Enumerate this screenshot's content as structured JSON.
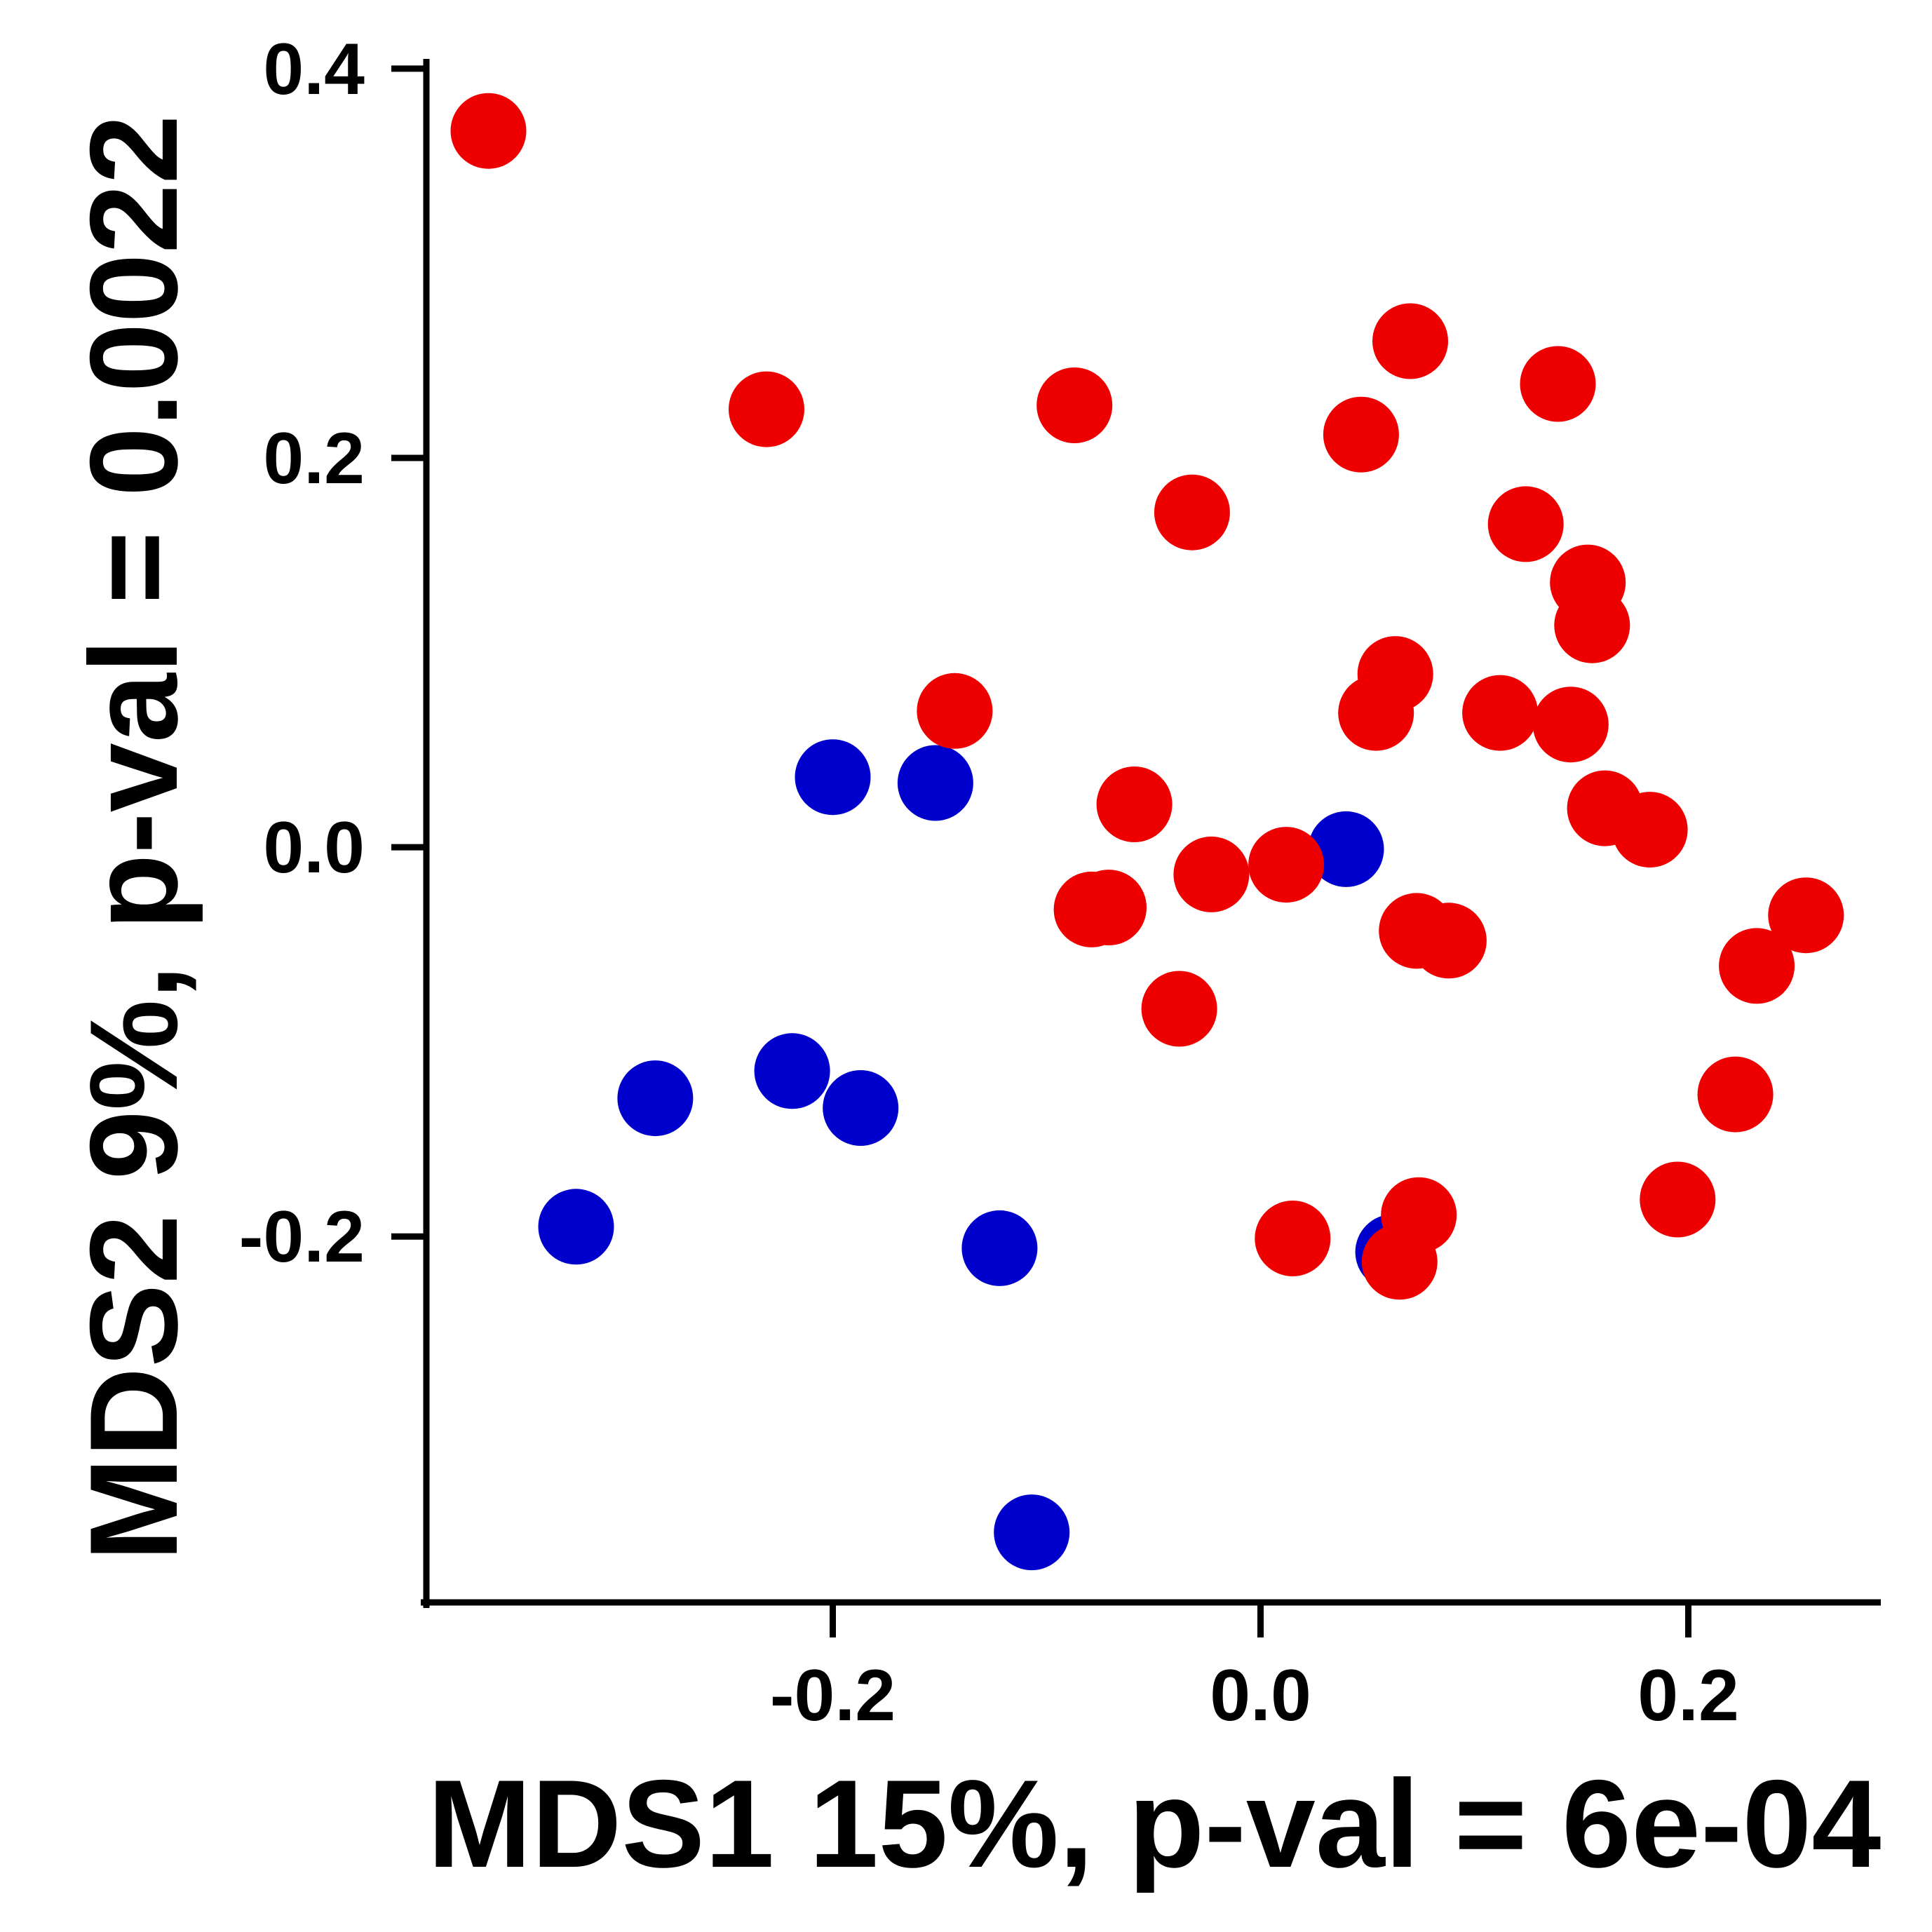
{
  "chart_data": {
    "type": "scatter",
    "xlabel": "MDS1 15%, p-val = 6e-04",
    "ylabel": "MDS2 9%, p-val = 0.0022",
    "xlim": [
      -0.39,
      0.29
    ],
    "ylim": [
      -0.388,
      0.405
    ],
    "xticks": [
      -0.2,
      0.0,
      0.2
    ],
    "xtick_labels": [
      "-0.2",
      "0.0",
      "0.2"
    ],
    "yticks": [
      -0.2,
      0.0,
      0.2,
      0.4
    ],
    "ytick_labels": [
      "-0.2",
      "0.0",
      "0.2",
      "0.4"
    ],
    "grid": false,
    "legend": "none",
    "series": [
      {
        "color": "#0000cc",
        "points": [
          [
            -0.2,
            0.036
          ],
          [
            -0.152,
            0.033
          ],
          [
            -0.219,
            -0.115
          ],
          [
            -0.283,
            -0.129
          ],
          [
            -0.187,
            -0.134
          ],
          [
            -0.32,
            -0.195
          ],
          [
            -0.122,
            -0.206
          ],
          [
            -0.107,
            -0.352
          ],
          [
            0.04,
            -0.001
          ],
          [
            0.062,
            -0.208
          ]
        ]
      },
      {
        "color": "#ee0000",
        "points": [
          [
            -0.361,
            0.368
          ],
          [
            -0.231,
            0.225
          ],
          [
            -0.087,
            0.227
          ],
          [
            -0.032,
            0.172
          ],
          [
            -0.143,
            0.07
          ],
          [
            -0.059,
            0.022
          ],
          [
            -0.079,
            -0.032
          ],
          [
            -0.071,
            -0.031
          ],
          [
            -0.023,
            -0.014
          ],
          [
            -0.038,
            -0.083
          ],
          [
            0.012,
            -0.009
          ],
          [
            0.015,
            -0.201
          ],
          [
            0.047,
            0.212
          ],
          [
            0.07,
            0.26
          ],
          [
            0.063,
            0.089
          ],
          [
            0.054,
            0.069
          ],
          [
            0.073,
            -0.043
          ],
          [
            0.088,
            -0.048
          ],
          [
            0.074,
            -0.189
          ],
          [
            0.065,
            -0.213
          ],
          [
            0.139,
            0.238
          ],
          [
            0.124,
            0.166
          ],
          [
            0.153,
            0.136
          ],
          [
            0.155,
            0.114
          ],
          [
            0.112,
            0.069
          ],
          [
            0.145,
            0.063
          ],
          [
            0.161,
            0.02
          ],
          [
            0.182,
            0.009
          ],
          [
            0.195,
            -0.181
          ],
          [
            0.222,
            -0.127
          ],
          [
            0.232,
            -0.061
          ],
          [
            0.255,
            -0.035
          ]
        ]
      }
    ]
  }
}
